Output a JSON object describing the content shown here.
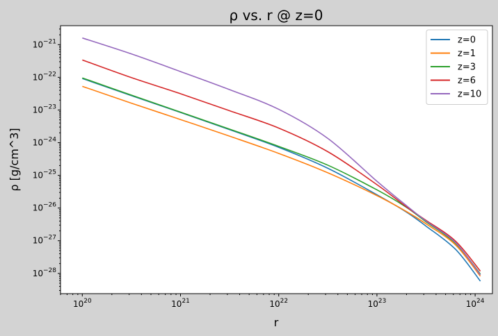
{
  "chart_data": {
    "type": "line",
    "title": "ρ vs. r @ z=0",
    "xlabel": "r",
    "ylabel": "ρ [g/cm^3]",
    "xscale": "log",
    "yscale": "log",
    "xlim": [
      6e+19,
      1.5e+24
    ],
    "ylim": [
      2.4e-29,
      3.8e-21
    ],
    "grid": false,
    "legend_position": "top-right",
    "x_ticks": [
      {
        "base": "10",
        "exp": "20",
        "value": 1e+20
      },
      {
        "base": "10",
        "exp": "21",
        "value": 1e+21
      },
      {
        "base": "10",
        "exp": "22",
        "value": 1e+22
      },
      {
        "base": "10",
        "exp": "23",
        "value": 1e+23
      },
      {
        "base": "10",
        "exp": "24",
        "value": 1e+24
      }
    ],
    "y_ticks": [
      {
        "base": "10",
        "exp": "−28",
        "value": 1e-28
      },
      {
        "base": "10",
        "exp": "−27",
        "value": 1e-27
      },
      {
        "base": "10",
        "exp": "−26",
        "value": 1e-26
      },
      {
        "base": "10",
        "exp": "−25",
        "value": 1e-25
      },
      {
        "base": "10",
        "exp": "−24",
        "value": 1e-24
      },
      {
        "base": "10",
        "exp": "−23",
        "value": 1e-23
      },
      {
        "base": "10",
        "exp": "−22",
        "value": 1e-22
      },
      {
        "base": "10",
        "exp": "−21",
        "value": 1e-21
      }
    ],
    "x": [
      1e+20,
      3.16e+20,
      1e+21,
      3.16e+21,
      1e+22,
      3.16e+22,
      1e+23,
      2e+23,
      3.16e+23,
      6.3e+23,
      1.13e+24
    ],
    "series": [
      {
        "name": "z=0",
        "color": "#1f77b4",
        "values": [
          9.2e-23,
          2.75e-23,
          8.4e-24,
          2.5e-24,
          7.2e-25,
          1.65e-25,
          2.55e-26,
          7.5e-27,
          2.8e-27,
          5.5e-28,
          5.8e-29
        ]
      },
      {
        "name": "z=1",
        "color": "#ff7f0e",
        "values": [
          5.3e-23,
          1.62e-23,
          5.1e-24,
          1.58e-24,
          4.7e-25,
          1.2e-25,
          2.4e-26,
          7.8e-27,
          3.3e-27,
          7.5e-28,
          8.2e-29
        ]
      },
      {
        "name": "z=3",
        "color": "#2ca02c",
        "values": [
          9.6e-23,
          2.85e-23,
          8.6e-24,
          2.6e-24,
          7.7e-25,
          2.05e-25,
          3.6e-26,
          1.05e-26,
          3.8e-27,
          8.4e-28,
          9.6e-29
        ]
      },
      {
        "name": "z=6",
        "color": "#d62728",
        "values": [
          3.4e-22,
          9.8e-23,
          3.15e-23,
          9.5e-24,
          2.8e-24,
          5.3e-25,
          5.2e-26,
          1.08e-26,
          4.2e-27,
          9.8e-28,
          1.17e-28
        ]
      },
      {
        "name": "z=10",
        "color": "#9467bd",
        "values": [
          1.6e-21,
          5.2e-22,
          1.5e-22,
          4.2e-23,
          1.05e-23,
          1.35e-24,
          6.6e-26,
          1.18e-26,
          4e-27,
          8.8e-28,
          9e-29
        ]
      }
    ]
  }
}
